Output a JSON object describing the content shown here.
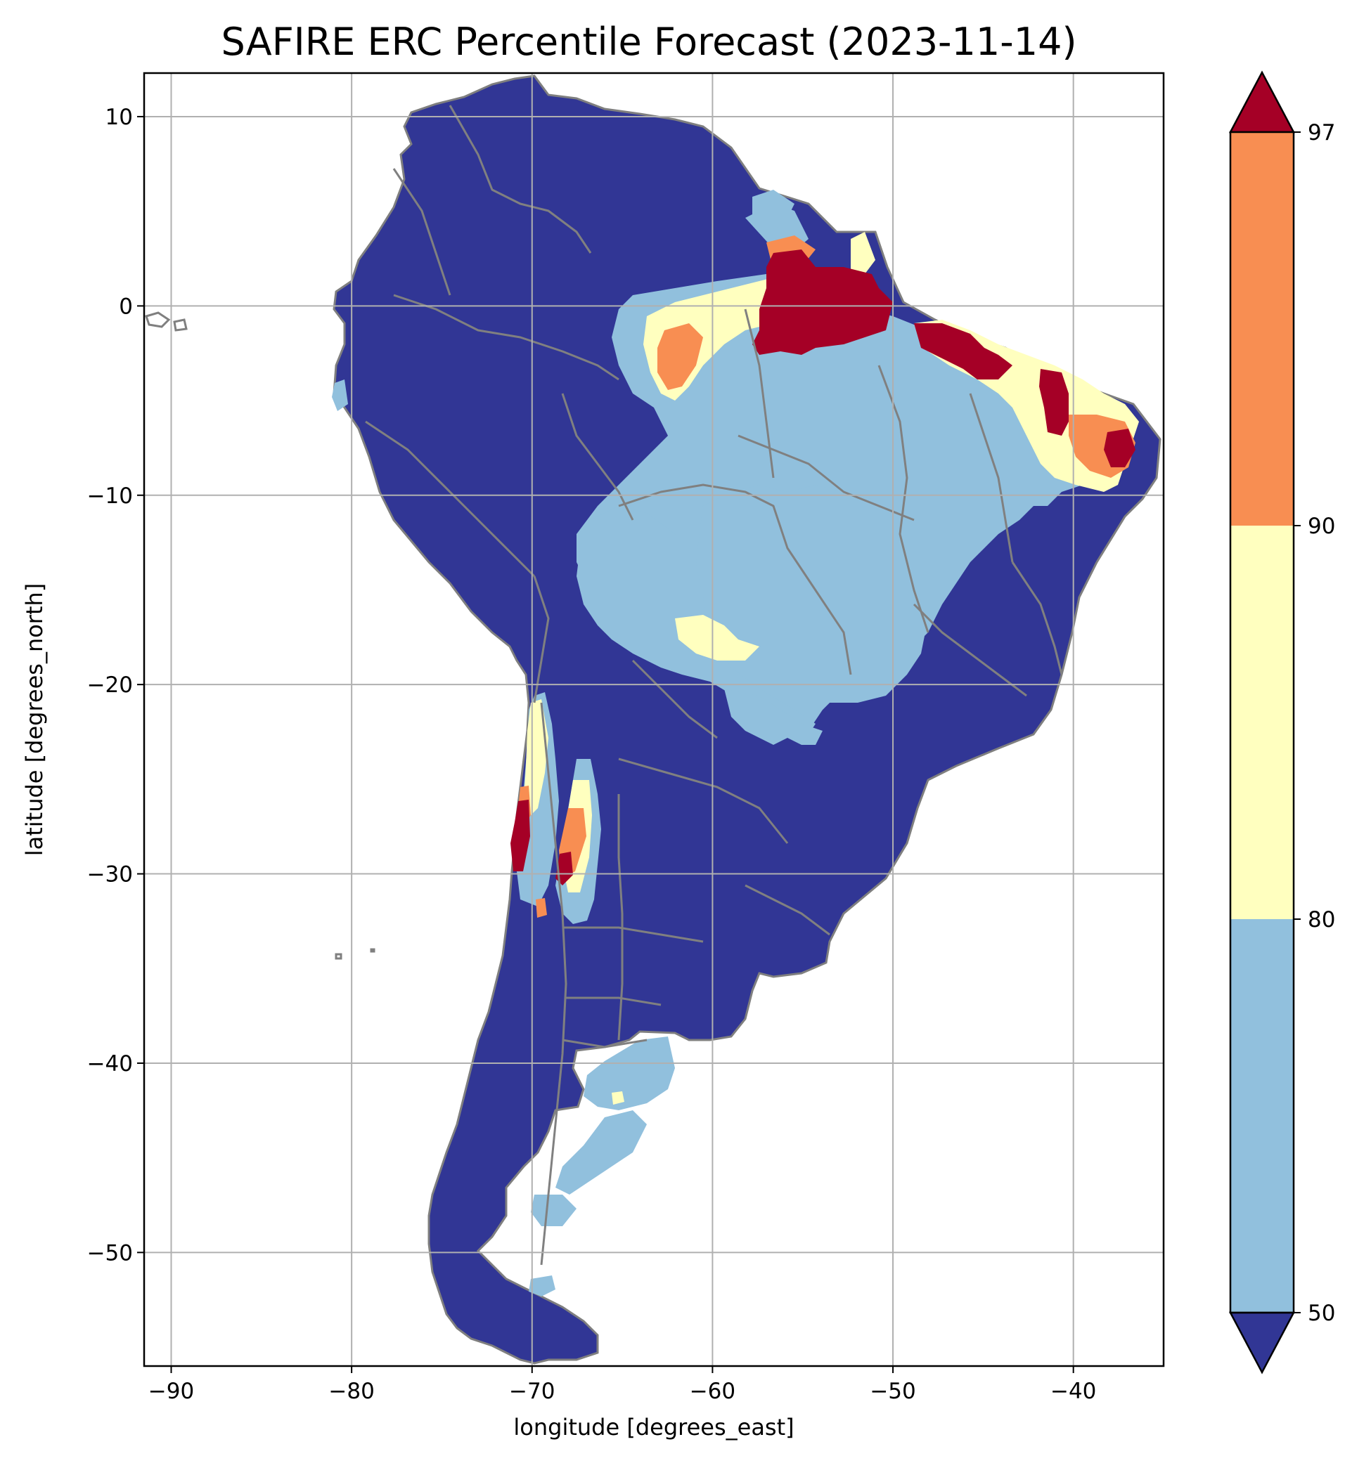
{
  "title": "SAFIRE ERC Percentile Forecast (2023-11-14)",
  "map": {
    "xlabel": "longitude [degrees_east]",
    "ylabel": "latitude [degrees_north]",
    "lon_range": [
      -91.5,
      -35
    ],
    "lat_range": [
      -56,
      12.3
    ],
    "x_ticks": [
      -90,
      -80,
      -70,
      -60,
      -50,
      -40
    ],
    "y_ticks": [
      10,
      0,
      -10,
      -20,
      -30,
      -40,
      -50
    ],
    "x_tick_labels": [
      "−90",
      "−80",
      "−70",
      "−60",
      "−50",
      "−40"
    ],
    "y_tick_labels": [
      "10",
      "0",
      "−10",
      "−20",
      "−30",
      "−40",
      "−50"
    ],
    "grid": true
  },
  "colorbar": {
    "boundaries": [
      50,
      80,
      90,
      97
    ],
    "labels": [
      "50",
      "80",
      "90",
      "97"
    ],
    "colors": {
      "below_50": "#313695",
      "50_80": "#91c0dd",
      "80_90": "#ffffbf",
      "90_97": "#f88e52",
      "above_97": "#a50026"
    }
  }
}
